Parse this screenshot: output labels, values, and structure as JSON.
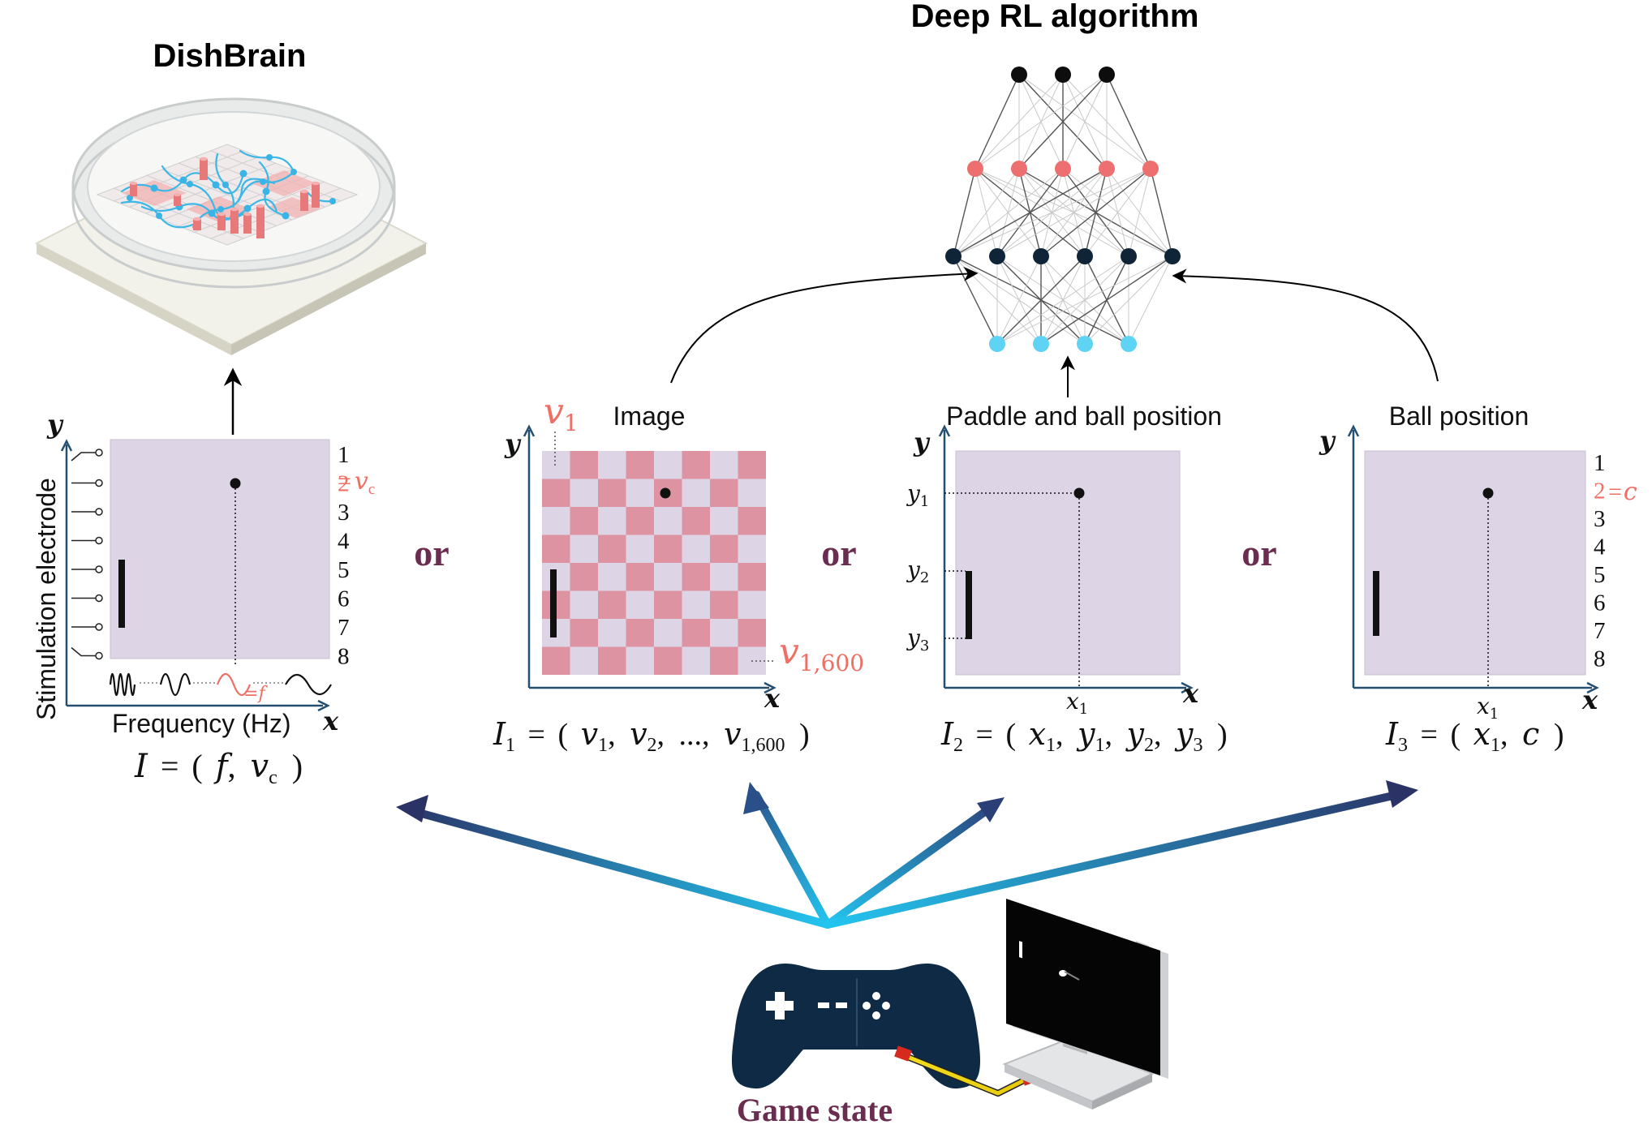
{
  "titles": {
    "dishbrain": "DishBrain",
    "deep_rl": "Deep RL algorithm"
  },
  "connector_word": "or",
  "game_state_label": "Game state",
  "panel_dishbrain": {
    "y_label": "Stimulation electrode",
    "x_label": "Frequency (Hz)",
    "axis_y": "y",
    "axis_x": "x",
    "electrodes": [
      "1",
      "2",
      "3",
      "4",
      "5",
      "6",
      "7",
      "8"
    ],
    "highlight_electrode_index": 1,
    "highlight_suffix": "=",
    "highlight_var": "v",
    "highlight_sub": "c",
    "freq_highlight": "=",
    "freq_highlight_var": "f",
    "formula": {
      "lhs": "I",
      "eq": "=",
      "open": "(",
      "a": "f",
      "sep": ",",
      "b": "v",
      "b_sub": "c",
      "close": ")"
    }
  },
  "panel_image": {
    "title": "Image",
    "axis_y": "y",
    "axis_x": "x",
    "top_label_var": "v",
    "top_label_sub": "1",
    "bottom_label_var": "v",
    "bottom_label_sub": "1,600",
    "formula": {
      "lhs": "I",
      "lhs_sub": "1",
      "eq": "=",
      "open": "(",
      "body": "v",
      "sub1": "1",
      "sep": ",",
      "v2": "v",
      "sub2": "2",
      "dots": "...,",
      "vlast": "v",
      "sublast": "1,600",
      "close": ")"
    }
  },
  "panel_paddle_ball": {
    "title": "Paddle and ball position",
    "axis_y": "y",
    "axis_x": "x",
    "y_ticks": [
      {
        "var": "y",
        "sub": "1"
      },
      {
        "var": "y",
        "sub": "2"
      },
      {
        "var": "y",
        "sub": "3"
      }
    ],
    "x_tick": {
      "var": "x",
      "sub": "1"
    },
    "formula": {
      "lhs": "I",
      "lhs_sub": "2",
      "eq": "=",
      "open": "(",
      "x": "x",
      "x_sub": "1",
      "y1": "y",
      "y1_sub": "1",
      "y2": "y",
      "y2_sub": "2",
      "y3": "y",
      "y3_sub": "3",
      "sep": ",",
      "close": ")"
    }
  },
  "panel_ball": {
    "title": "Ball position",
    "axis_y": "y",
    "axis_x": "x",
    "electrodes": [
      "1",
      "2",
      "3",
      "4",
      "5",
      "6",
      "7",
      "8"
    ],
    "highlight_electrode_index": 1,
    "highlight_suffix": "=",
    "highlight_var": "c",
    "x_tick": {
      "var": "x",
      "sub": "1"
    },
    "formula": {
      "lhs": "I",
      "lhs_sub": "3",
      "eq": "=",
      "open": "(",
      "x": "x",
      "x_sub": "1",
      "sep": ",",
      "c": "c",
      "close": ")"
    }
  },
  "network": {
    "layers": [
      3,
      5,
      6,
      4
    ],
    "layer_colors": [
      "#0d0d0d",
      "#ee6f6f",
      "#0f2436",
      "#5fd3f3"
    ]
  },
  "colors": {
    "panel_fill": "#ddd4e6",
    "checker_pink": "#de93a3",
    "checker_light": "#ddd4e6",
    "axis": "#244f6e",
    "accent": "#ee6f64",
    "or_color": "#6a2c4f",
    "controller": "#0f2a44",
    "arrow_light": "#23c5ef",
    "arrow_dark": "#2b3366"
  }
}
